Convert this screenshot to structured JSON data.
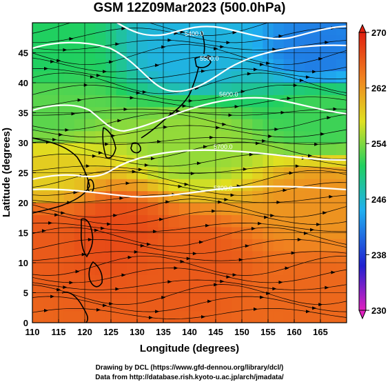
{
  "title": "GSM 12Z09Mar2023 (500.0hPa)",
  "x_axis": {
    "label": "Longitude (degrees)",
    "range": [
      110,
      170
    ],
    "ticks": [
      "110",
      "115",
      "120",
      "125",
      "130",
      "135",
      "140",
      "145",
      "150",
      "155",
      "160",
      "165"
    ]
  },
  "y_axis": {
    "label": "Latitude  (degrees)",
    "range": [
      0,
      50
    ],
    "ticks": [
      "0",
      "5",
      "10",
      "15",
      "20",
      "25",
      "30",
      "35",
      "40",
      "45"
    ]
  },
  "colorbar": {
    "range": [
      230,
      270
    ],
    "tick_labels": [
      "230",
      "238",
      "246",
      "254",
      "262",
      "270"
    ],
    "colors": [
      "#e020c0",
      "#2020d0",
      "#20b0f0",
      "#20d060",
      "#e0e020",
      "#f08020",
      "#e02010"
    ]
  },
  "contours": [
    {
      "label": "5400.0"
    },
    {
      "label": "5500.0"
    },
    {
      "label": "5600.0"
    },
    {
      "label": "5700.0"
    },
    {
      "label": "5800.0"
    }
  ],
  "credits": {
    "line1": "Drawing by DCL (https://www.gfd-dennou.org/library/dcl/)",
    "line2": "Data from http://database.rish.kyoto-u.ac.jp/arch/jmadata/"
  },
  "chart_data": {
    "type": "heatmap",
    "title": "GSM 12Z09Mar2023 (500.0hPa)",
    "xlabel": "Longitude (degrees)",
    "ylabel": "Latitude  (degrees)",
    "xlim": [
      110,
      170
    ],
    "ylim": [
      0,
      50
    ],
    "colorbar_range": [
      230,
      270
    ],
    "field_samples": [
      {
        "lon": 112,
        "lat": 45,
        "value": 250
      },
      {
        "lon": 112,
        "lat": 35,
        "value": 252
      },
      {
        "lon": 112,
        "lat": 25,
        "value": 258
      },
      {
        "lon": 112,
        "lat": 15,
        "value": 266
      },
      {
        "lon": 125,
        "lat": 15,
        "value": 267
      },
      {
        "lon": 140,
        "lat": 45,
        "value": 244
      },
      {
        "lon": 140,
        "lat": 30,
        "value": 254
      },
      {
        "lon": 140,
        "lat": 10,
        "value": 266
      },
      {
        "lon": 165,
        "lat": 45,
        "value": 241
      },
      {
        "lon": 165,
        "lat": 35,
        "value": 251
      },
      {
        "lon": 165,
        "lat": 20,
        "value": 262
      },
      {
        "lon": 165,
        "lat": 5,
        "value": 265
      }
    ],
    "contour_levels": [
      5400.0,
      5500.0,
      5600.0,
      5700.0,
      5800.0
    ],
    "grid": true
  }
}
